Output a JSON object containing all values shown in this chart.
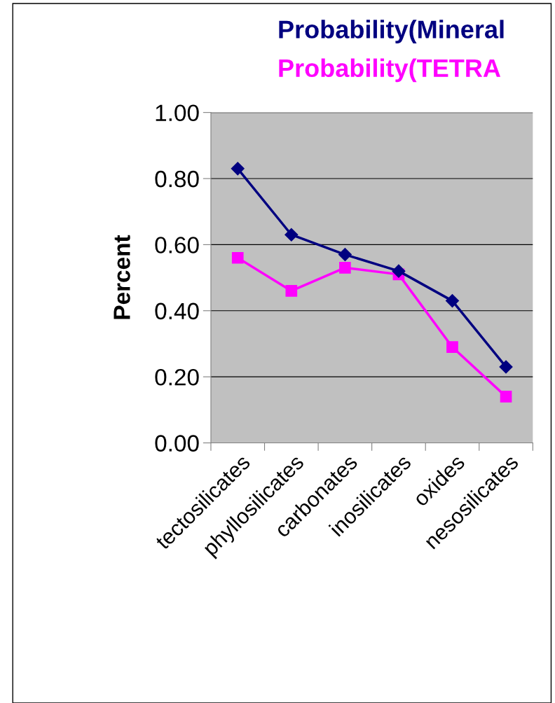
{
  "chart_data": {
    "type": "line",
    "categories": [
      "tectosilicates",
      "phyllosilicates",
      "carbonates",
      "inosilicates",
      "oxides",
      "nesosilicates"
    ],
    "series": [
      {
        "name": "Probability(Mineral",
        "color": "#000080",
        "marker": "diamond",
        "values": [
          0.83,
          0.63,
          0.57,
          0.52,
          0.43,
          0.23
        ]
      },
      {
        "name": "Probability(TETRA",
        "color": "#ff00ff",
        "marker": "square",
        "values": [
          0.56,
          0.46,
          0.53,
          0.51,
          0.29,
          0.14
        ]
      }
    ],
    "ylabel": "Percent",
    "ylim": [
      0,
      1
    ],
    "yticks": [
      {
        "value": 0,
        "label": "0.00"
      },
      {
        "value": 0.2,
        "label": "0.20"
      },
      {
        "value": 0.4,
        "label": "0.40"
      },
      {
        "value": 0.6,
        "label": "0.60"
      },
      {
        "value": 0.8,
        "label": "0.80"
      },
      {
        "value": 1,
        "label": "1.00"
      }
    ],
    "grid": "y",
    "legend": "top",
    "line_style": "solid"
  }
}
